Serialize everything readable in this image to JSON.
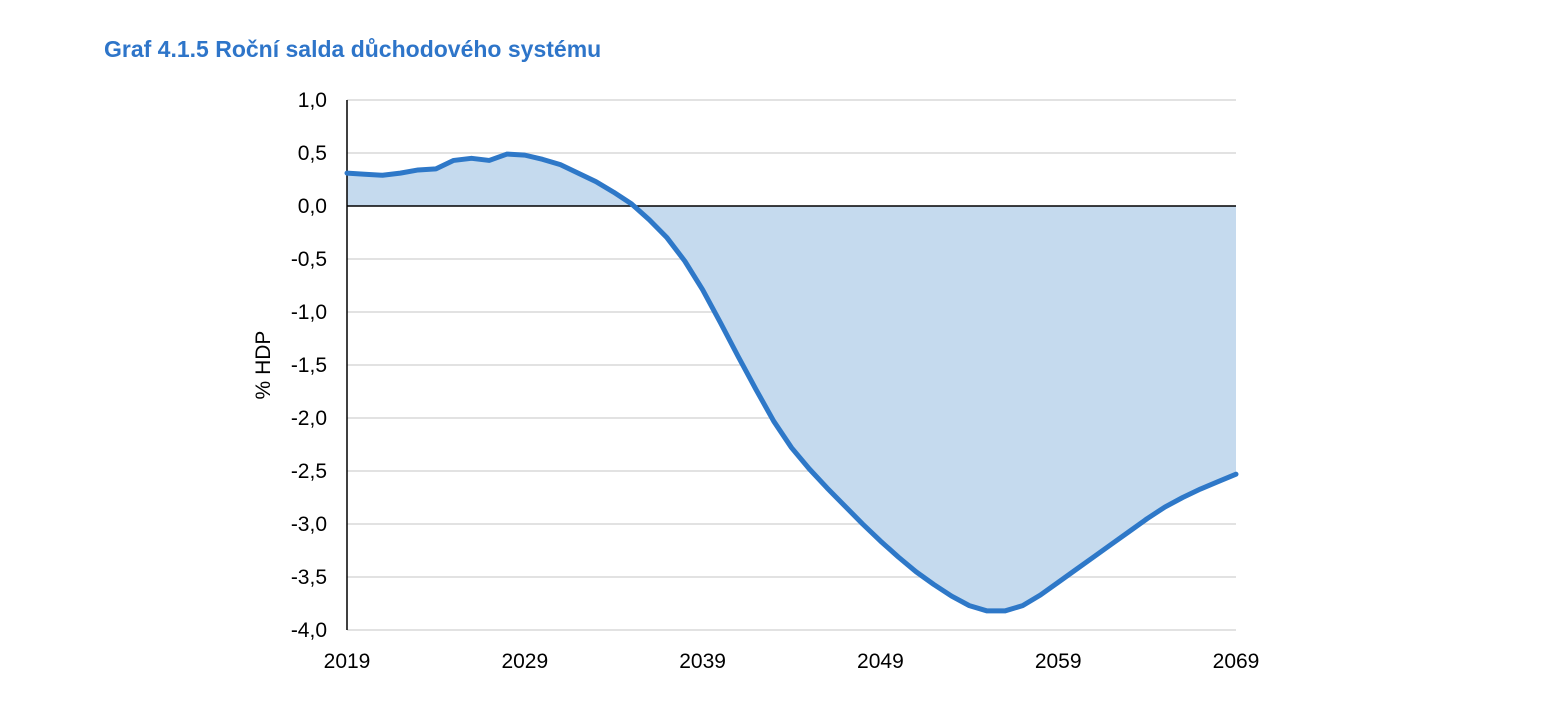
{
  "chart_data": {
    "type": "area",
    "title": "Graf 4.1.5 Roční salda důchodového systému",
    "xlabel": "",
    "ylabel": "% HDP",
    "xlim": [
      2019,
      2069
    ],
    "ylim": [
      -4.0,
      1.0
    ],
    "x_ticks": [
      2019,
      2029,
      2039,
      2049,
      2059,
      2069
    ],
    "x_tick_labels": [
      "2019",
      "2029",
      "2039",
      "2049",
      "2059",
      "2069"
    ],
    "y_ticks": [
      1.0,
      0.5,
      0.0,
      -0.5,
      -1.0,
      -1.5,
      -2.0,
      -2.5,
      -3.0,
      -3.5,
      -4.0
    ],
    "y_tick_labels": [
      "1,0",
      "0,5",
      "0,0",
      "-0,5",
      "-1,0",
      "-1,5",
      "-2,0",
      "-2,5",
      "-3,0",
      "-3,5",
      "-4,0"
    ],
    "grid": "horizontal",
    "colors": {
      "line": "#2e78c8",
      "fill": "#c5daee",
      "title": "#2e75c9",
      "grid": "#d9d9d9"
    },
    "series": [
      {
        "x": [
          2019,
          2020,
          2021,
          2022,
          2023,
          2024,
          2025,
          2026,
          2027,
          2028,
          2029,
          2030,
          2031,
          2032,
          2033,
          2034,
          2035,
          2036,
          2037,
          2038,
          2039,
          2040,
          2041,
          2042,
          2043,
          2044,
          2045,
          2046,
          2047,
          2048,
          2049,
          2050,
          2051,
          2052,
          2053,
          2054,
          2055,
          2056,
          2057,
          2058,
          2059,
          2060,
          2061,
          2062,
          2063,
          2064,
          2065,
          2066,
          2067,
          2068,
          2069
        ],
        "values": [
          0.31,
          0.3,
          0.29,
          0.31,
          0.34,
          0.35,
          0.43,
          0.45,
          0.43,
          0.49,
          0.48,
          0.44,
          0.39,
          0.31,
          0.23,
          0.13,
          0.02,
          -0.13,
          -0.3,
          -0.52,
          -0.79,
          -1.1,
          -1.42,
          -1.73,
          -2.03,
          -2.28,
          -2.48,
          -2.66,
          -2.83,
          -3.0,
          -3.16,
          -3.31,
          -3.45,
          -3.57,
          -3.68,
          -3.77,
          -3.82,
          -3.82,
          -3.77,
          -3.67,
          -3.55,
          -3.43,
          -3.31,
          -3.19,
          -3.07,
          -2.95,
          -2.84,
          -2.75,
          -2.67,
          -2.6,
          -2.53
        ]
      }
    ]
  }
}
